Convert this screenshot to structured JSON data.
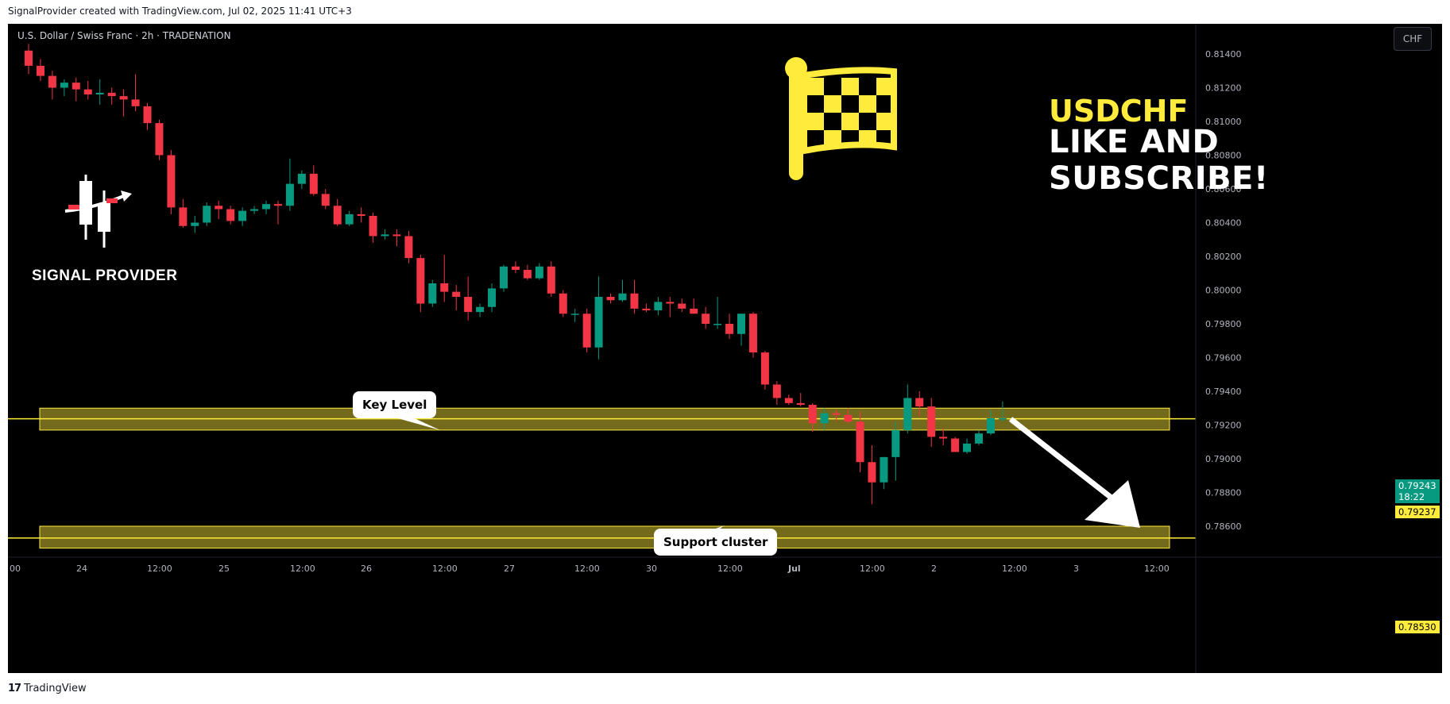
{
  "header": {
    "text": "SignalProvider created with TradingView.com, Jul 02, 2025 11:41 UTC+3"
  },
  "footer": {
    "logo": "17",
    "brand": "TradingView"
  },
  "chart": {
    "symbol_title": "U.S. Dollar / Swiss Franc · 2h · TRADENATION",
    "currency": "CHF",
    "current_price": "0.79243",
    "countdown": "18:22",
    "key_level_price": "0.79237",
    "support_price": "0.78530",
    "brand": "SIGNAL PROVIDER",
    "overlay_pair": "USDCHF",
    "overlay_cta": "LIKE AND SUBSCRIBE!",
    "callout_key": "Key Level",
    "callout_support": "Support cluster"
  },
  "colors": {
    "up": "#089981",
    "down": "#f23645",
    "zone": "#ffeb3b",
    "background": "#000000",
    "flag": "#ffeb3b"
  },
  "chart_data": {
    "type": "candlestick",
    "title": "U.S. Dollar / Swiss Franc · 2h · TRADENATION",
    "ylim": [
      0.7848,
      0.815
    ],
    "yticks": [
      "0.81400",
      "0.81200",
      "0.81000",
      "0.80800",
      "0.80600",
      "0.80400",
      "0.80200",
      "0.80000",
      "0.79800",
      "0.79600",
      "0.79400",
      "0.79200",
      "0.79000",
      "0.78800",
      "0.78600"
    ],
    "xticks": [
      "00",
      "24",
      "12:00",
      "25",
      "12:00",
      "26",
      "12:00",
      "27",
      "12:00",
      "30",
      "12:00",
      "Jul",
      "12:00",
      "2",
      "12:00",
      "3",
      "12:00"
    ],
    "zones": [
      {
        "name": "Key Level",
        "low": 0.7917,
        "high": 0.793,
        "line": 0.79237
      },
      {
        "name": "Support cluster",
        "low": 0.7847,
        "high": 0.786,
        "line": 0.7853
      }
    ],
    "candles": [
      [
        0.8142,
        0.8146,
        0.8128,
        0.8133
      ],
      [
        0.8133,
        0.8137,
        0.8124,
        0.8127
      ],
      [
        0.8127,
        0.813,
        0.8113,
        0.812
      ],
      [
        0.812,
        0.8125,
        0.8115,
        0.8123
      ],
      [
        0.8123,
        0.8126,
        0.8112,
        0.8119
      ],
      [
        0.8119,
        0.8124,
        0.8113,
        0.8116
      ],
      [
        0.8116,
        0.8125,
        0.811,
        0.8117
      ],
      [
        0.8117,
        0.812,
        0.811,
        0.8115
      ],
      [
        0.8115,
        0.8119,
        0.8103,
        0.8113
      ],
      [
        0.8113,
        0.8128,
        0.8106,
        0.8109
      ],
      [
        0.8109,
        0.8111,
        0.8095,
        0.8099
      ],
      [
        0.8099,
        0.8101,
        0.8077,
        0.808
      ],
      [
        0.808,
        0.8083,
        0.8045,
        0.8049
      ],
      [
        0.8049,
        0.8054,
        0.8037,
        0.8038
      ],
      [
        0.8038,
        0.8044,
        0.8034,
        0.804
      ],
      [
        0.804,
        0.8052,
        0.8038,
        0.805
      ],
      [
        0.805,
        0.8053,
        0.8042,
        0.8048
      ],
      [
        0.8048,
        0.805,
        0.8039,
        0.8041
      ],
      [
        0.8041,
        0.8049,
        0.8038,
        0.8047
      ],
      [
        0.8047,
        0.805,
        0.8045,
        0.8048
      ],
      [
        0.8048,
        0.8053,
        0.8045,
        0.8051
      ],
      [
        0.8051,
        0.8053,
        0.8039,
        0.805
      ],
      [
        0.805,
        0.8078,
        0.8047,
        0.8063
      ],
      [
        0.8063,
        0.8071,
        0.806,
        0.8069
      ],
      [
        0.8069,
        0.8074,
        0.8056,
        0.8057
      ],
      [
        0.8057,
        0.806,
        0.8048,
        0.805
      ],
      [
        0.805,
        0.8054,
        0.8038,
        0.8039
      ],
      [
        0.8039,
        0.8047,
        0.8038,
        0.8045
      ],
      [
        0.8045,
        0.8049,
        0.804,
        0.8044
      ],
      [
        0.8044,
        0.8046,
        0.8028,
        0.8032
      ],
      [
        0.8032,
        0.8036,
        0.803,
        0.8033
      ],
      [
        0.8033,
        0.8036,
        0.8026,
        0.8032
      ],
      [
        0.8032,
        0.8035,
        0.8016,
        0.8019
      ],
      [
        0.8019,
        0.8021,
        0.7987,
        0.7992
      ],
      [
        0.7992,
        0.8006,
        0.799,
        0.8004
      ],
      [
        0.8004,
        0.8021,
        0.7993,
        0.7999
      ],
      [
        0.7999,
        0.8003,
        0.7988,
        0.7996
      ],
      [
        0.7996,
        0.8008,
        0.7982,
        0.7987
      ],
      [
        0.7987,
        0.7992,
        0.7984,
        0.799
      ],
      [
        0.799,
        0.8004,
        0.7987,
        0.8001
      ],
      [
        0.8001,
        0.8015,
        0.7999,
        0.8014
      ],
      [
        0.8014,
        0.8017,
        0.801,
        0.8012
      ],
      [
        0.8012,
        0.8015,
        0.8006,
        0.8007
      ],
      [
        0.8007,
        0.8016,
        0.8006,
        0.8014
      ],
      [
        0.8014,
        0.8017,
        0.7996,
        0.7998
      ],
      [
        0.7998,
        0.8,
        0.7984,
        0.7986
      ],
      [
        0.7986,
        0.7989,
        0.7981,
        0.7986
      ],
      [
        0.7986,
        0.7989,
        0.7963,
        0.7966
      ],
      [
        0.7966,
        0.8008,
        0.7959,
        0.7996
      ],
      [
        0.7996,
        0.7998,
        0.7992,
        0.7994
      ],
      [
        0.7994,
        0.8006,
        0.7993,
        0.7998
      ],
      [
        0.7998,
        0.8006,
        0.7986,
        0.7989
      ],
      [
        0.7989,
        0.7992,
        0.7987,
        0.7988
      ],
      [
        0.7988,
        0.7996,
        0.7985,
        0.7993
      ],
      [
        0.7993,
        0.7996,
        0.7984,
        0.7992
      ],
      [
        0.7992,
        0.7995,
        0.7987,
        0.7989
      ],
      [
        0.7989,
        0.7995,
        0.7986,
        0.7986
      ],
      [
        0.7986,
        0.799,
        0.7977,
        0.798
      ],
      [
        0.798,
        0.7996,
        0.7977,
        0.798
      ],
      [
        0.798,
        0.7986,
        0.7971,
        0.7974
      ],
      [
        0.7974,
        0.7986,
        0.7967,
        0.7986
      ],
      [
        0.7986,
        0.7987,
        0.796,
        0.7963
      ],
      [
        0.7963,
        0.7964,
        0.7941,
        0.7944
      ],
      [
        0.7944,
        0.7946,
        0.7932,
        0.7936
      ],
      [
        0.7936,
        0.7938,
        0.7932,
        0.7933
      ],
      [
        0.7933,
        0.7939,
        0.7931,
        0.7932
      ],
      [
        0.7932,
        0.7933,
        0.7916,
        0.7921
      ],
      [
        0.7921,
        0.793,
        0.7917,
        0.7927
      ],
      [
        0.7927,
        0.7929,
        0.7922,
        0.7926
      ],
      [
        0.7926,
        0.793,
        0.7921,
        0.7922
      ],
      [
        0.7922,
        0.7928,
        0.7892,
        0.7898
      ],
      [
        0.7898,
        0.7908,
        0.7873,
        0.7886
      ],
      [
        0.7886,
        0.7901,
        0.7882,
        0.7901
      ],
      [
        0.7901,
        0.7922,
        0.7887,
        0.7917
      ],
      [
        0.7917,
        0.7944,
        0.7915,
        0.7936
      ],
      [
        0.7936,
        0.794,
        0.7925,
        0.7931
      ],
      [
        0.7931,
        0.7936,
        0.7907,
        0.7913
      ],
      [
        0.7913,
        0.7918,
        0.7908,
        0.7912
      ],
      [
        0.7912,
        0.7913,
        0.7904,
        0.7904
      ],
      [
        0.7904,
        0.7912,
        0.7903,
        0.7909
      ],
      [
        0.7909,
        0.7917,
        0.7908,
        0.7915
      ],
      [
        0.7915,
        0.7929,
        0.7914,
        0.7924
      ],
      [
        0.7924,
        0.7934,
        0.7922,
        0.7924
      ]
    ]
  }
}
